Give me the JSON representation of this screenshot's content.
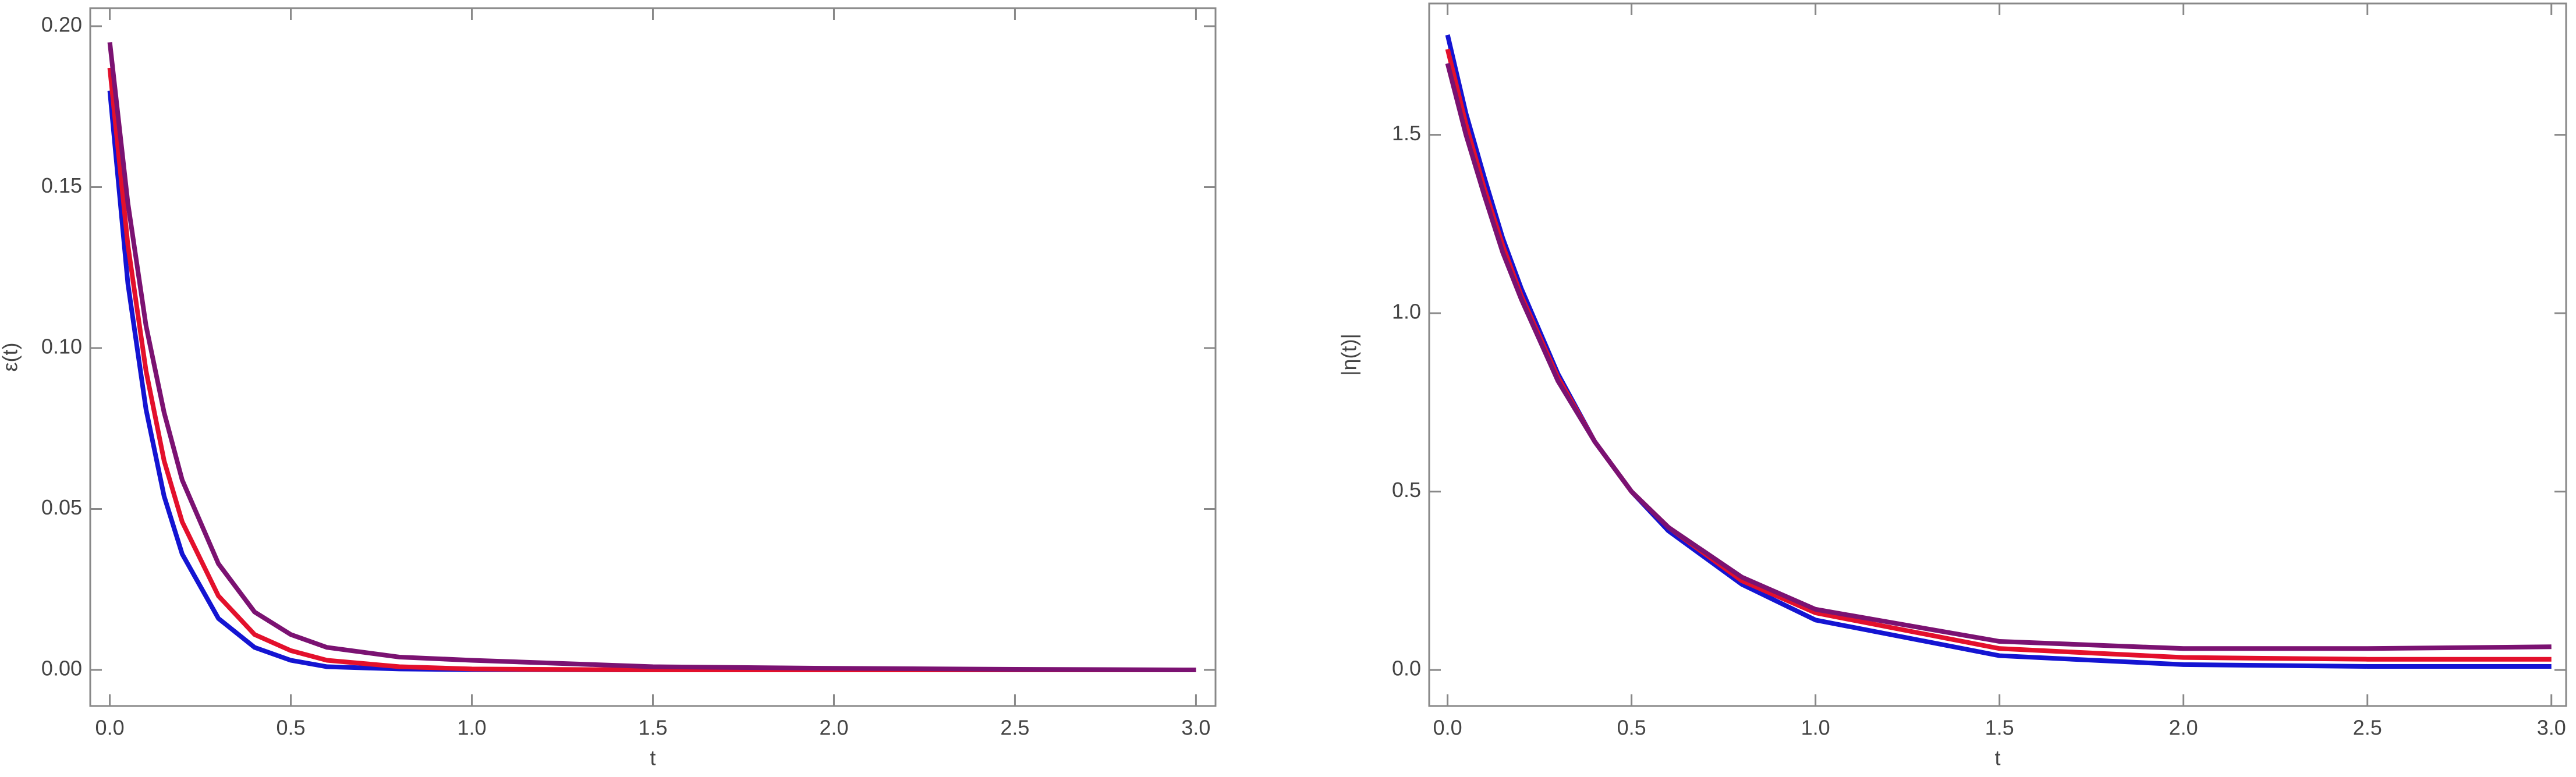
{
  "chart_data": [
    {
      "type": "line",
      "xlabel": "t",
      "ylabel": "ε(t)",
      "x": [
        0,
        0.05,
        0.1,
        0.15,
        0.2,
        0.3,
        0.4,
        0.5,
        0.6,
        0.8,
        1.0,
        1.5,
        2.0,
        2.5,
        3.0
      ],
      "series": [
        {
          "color": "#1414d2",
          "values": [
            0.18,
            0.12,
            0.081,
            0.054,
            0.036,
            0.016,
            0.007,
            0.003,
            0.001,
            0.0003,
            0.0001,
            0,
            0,
            0,
            0
          ]
        },
        {
          "color": "#e3102c",
          "values": [
            0.187,
            0.132,
            0.093,
            0.065,
            0.046,
            0.023,
            0.011,
            0.006,
            0.003,
            0.001,
            0.0003,
            0,
            0,
            0,
            0
          ]
        },
        {
          "color": "#7b1272",
          "values": [
            0.195,
            0.145,
            0.107,
            0.08,
            0.059,
            0.033,
            0.018,
            0.011,
            0.007,
            0.004,
            0.003,
            0.001,
            0.0005,
            0.0002,
            0
          ]
        }
      ],
      "xlim": [
        -0.054,
        3.054
      ],
      "ylim": [
        -0.0112,
        0.2056
      ],
      "xticks": [
        {
          "value": 0,
          "label": "0.0"
        },
        0.5,
        {
          "value": 1,
          "label": "1.0"
        },
        1.5,
        {
          "value": 2,
          "label": "2.0"
        },
        2.5,
        {
          "value": 3,
          "label": "3.0"
        }
      ],
      "yticks": [
        {
          "value": 0,
          "label": "0.00"
        },
        0.05,
        {
          "value": 0.1,
          "label": "0.10"
        },
        0.15,
        {
          "value": 0.2,
          "label": "0.20"
        }
      ]
    },
    {
      "type": "line",
      "xlabel": "t",
      "ylabel": "|η(t)|",
      "x": [
        0,
        0.05,
        0.1,
        0.15,
        0.2,
        0.3,
        0.4,
        0.5,
        0.6,
        0.8,
        1.0,
        1.5,
        2.0,
        2.5,
        3.0
      ],
      "series": [
        {
          "color": "#1414d2",
          "values": [
            1.78,
            1.56,
            1.38,
            1.21,
            1.07,
            0.83,
            0.64,
            0.5,
            0.39,
            0.24,
            0.14,
            0.04,
            0.015,
            0.01,
            0.01
          ]
        },
        {
          "color": "#e3102c",
          "values": [
            1.74,
            1.53,
            1.35,
            1.19,
            1.05,
            0.82,
            0.64,
            0.5,
            0.4,
            0.25,
            0.16,
            0.06,
            0.035,
            0.03,
            0.03
          ]
        },
        {
          "color": "#7b1272",
          "values": [
            1.7,
            1.5,
            1.33,
            1.17,
            1.04,
            0.81,
            0.64,
            0.5,
            0.4,
            0.26,
            0.17,
            0.08,
            0.06,
            0.06,
            0.065
          ]
        }
      ],
      "xlim": [
        -0.05,
        3.04
      ],
      "ylim": [
        -0.101,
        1.868
      ],
      "xticks": [
        {
          "value": 0,
          "label": "0.0"
        },
        0.5,
        {
          "value": 1,
          "label": "1.0"
        },
        1.5,
        {
          "value": 2,
          "label": "2.0"
        },
        2.5,
        {
          "value": 3,
          "label": "3.0"
        }
      ],
      "yticks": [
        {
          "value": 0,
          "label": "0.0"
        },
        0.5,
        {
          "value": 1,
          "label": "1.0"
        },
        1.5
      ]
    }
  ]
}
